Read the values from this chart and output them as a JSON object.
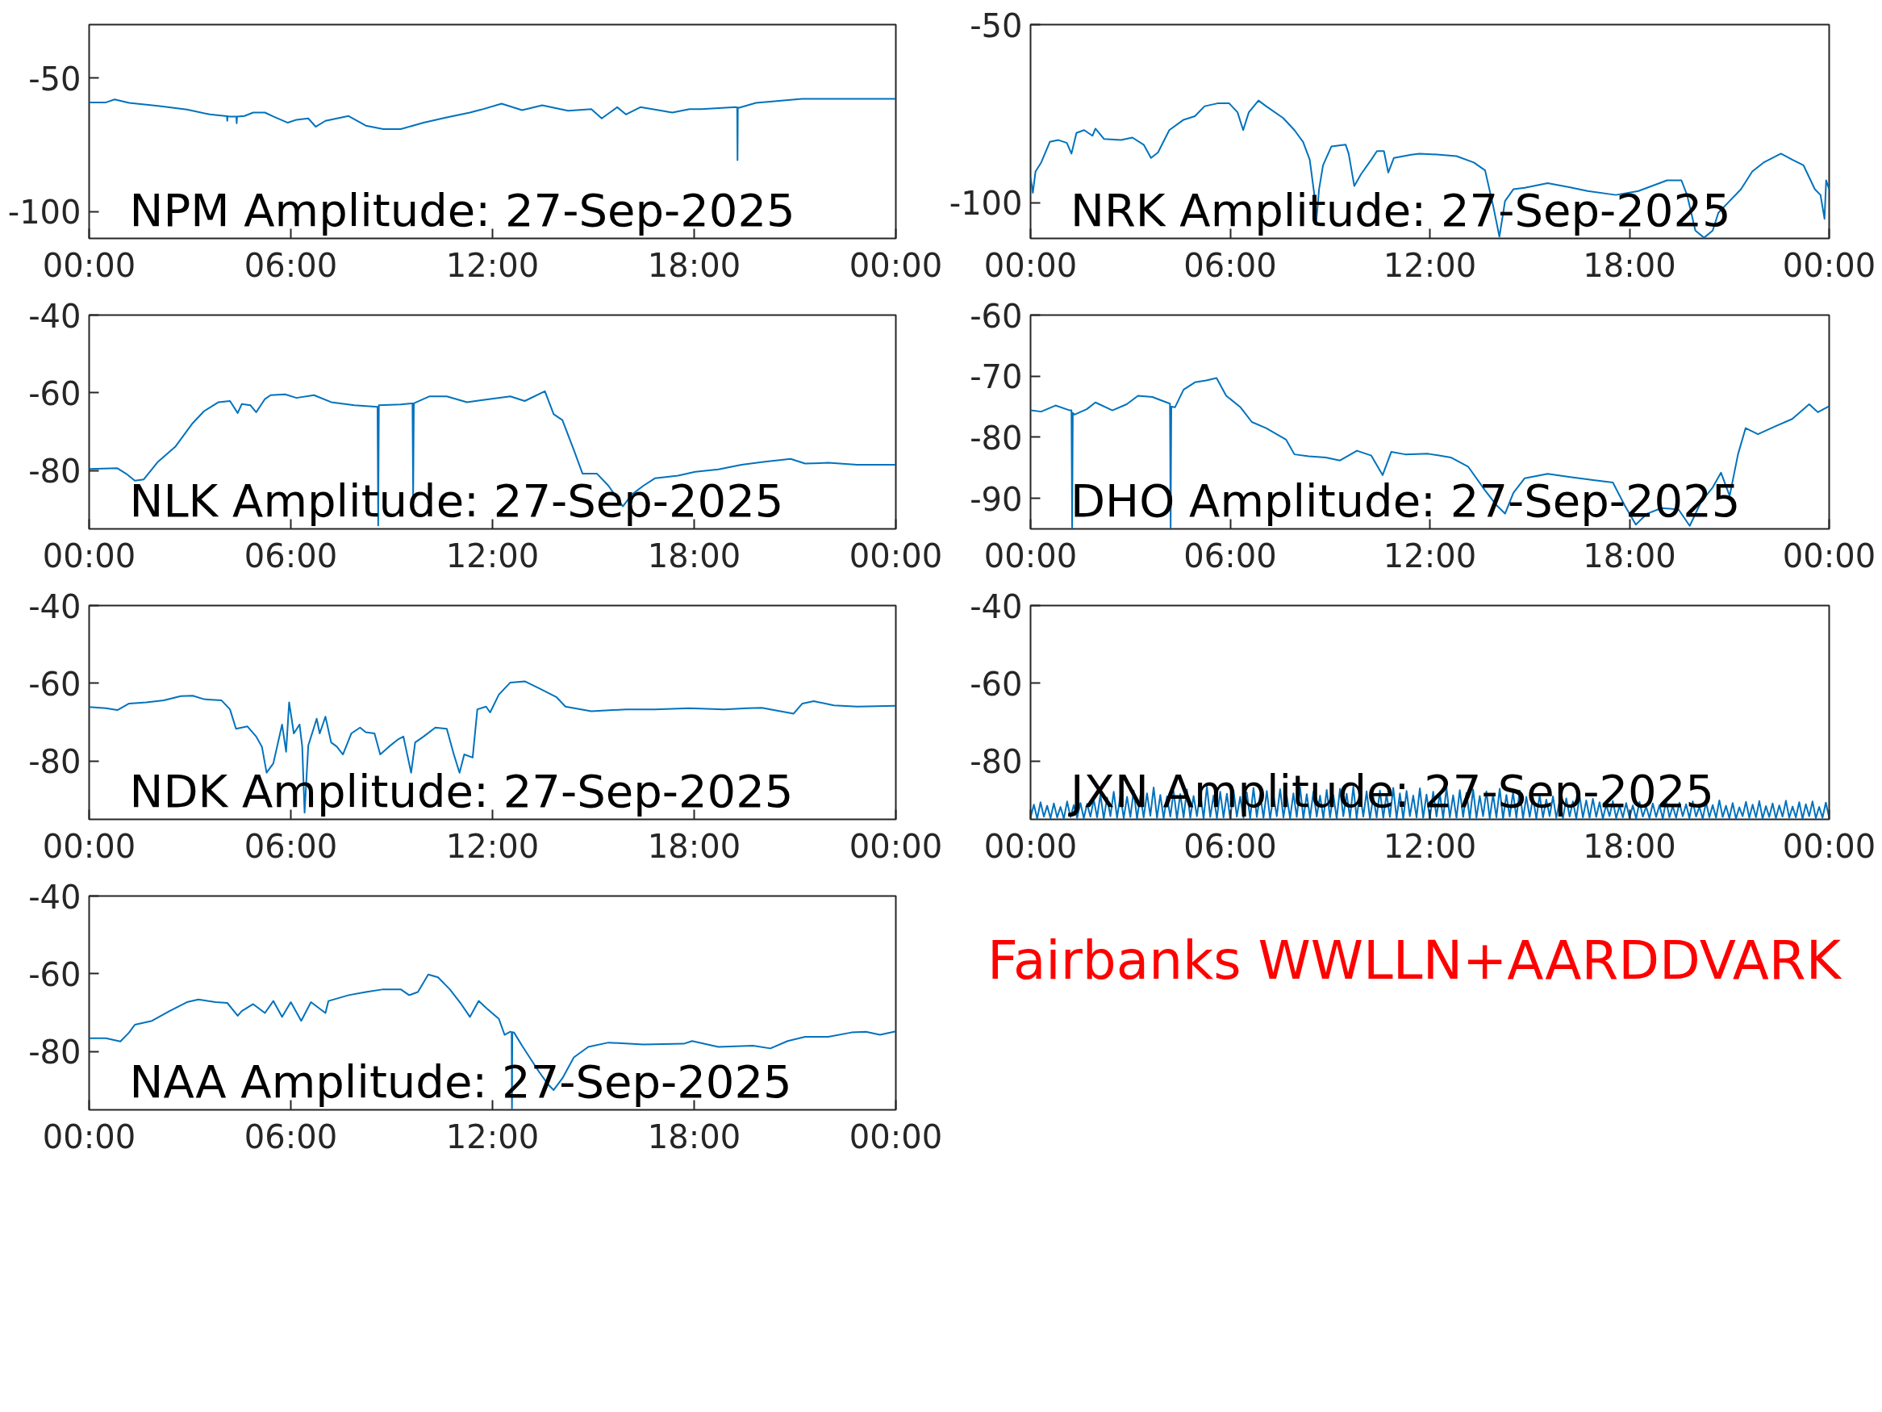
{
  "chart_data": [
    {
      "type": "line",
      "title": "NPM Amplitude: 27-Sep-2025",
      "xlim": [
        0,
        24
      ],
      "xticks": [
        {
          "value": 0,
          "label": "00:00"
        },
        {
          "value": 6,
          "label": "06:00"
        },
        {
          "value": 12,
          "label": "12:00"
        },
        {
          "value": 18,
          "label": "18:00"
        },
        {
          "value": 24,
          "label": "00:00"
        }
      ],
      "ylim": [
        -110,
        -30
      ],
      "yticks": [
        -100,
        -50
      ],
      "x": [
        0,
        0.5,
        0.76,
        1.19,
        2.05,
        2.91,
        3.59,
        4.1,
        4.11,
        4.12,
        4.19,
        4.38,
        4.39,
        4.4,
        4.62,
        4.88,
        5.23,
        5.48,
        5.91,
        6.17,
        6.52,
        6.74,
        7.03,
        7.72,
        8.23,
        8.75,
        9.27,
        9.95,
        10.64,
        11.33,
        11.67,
        12.27,
        12.88,
        13.48,
        14.25,
        14.94,
        15.25,
        15.45,
        15.71,
        15.97,
        16.4,
        16.83,
        17.35,
        17.86,
        18.21,
        19.24,
        19.28,
        19.29,
        19.3,
        19.34,
        19.84,
        21.21,
        21.99,
        24
      ],
      "series": [
        {
          "color": "#0072bd",
          "values": [
            -59.1,
            -59.1,
            -58.0,
            -59.3,
            -60.4,
            -61.8,
            -63.6,
            -64.3,
            -66.0,
            -64.3,
            -64.4,
            -64.4,
            -66.9,
            -64.4,
            -64.2,
            -62.9,
            -62.9,
            -64.4,
            -66.7,
            -65.6,
            -65.1,
            -68.2,
            -66.0,
            -64.2,
            -67.8,
            -69.1,
            -69.1,
            -66.7,
            -64.7,
            -62.9,
            -61.8,
            -59.6,
            -62.0,
            -60.2,
            -62.2,
            -61.6,
            -65.1,
            -63.3,
            -60.9,
            -63.6,
            -60.9,
            -61.8,
            -62.9,
            -61.6,
            -61.6,
            -60.9,
            -61.0,
            -80.7,
            -61.0,
            -61.1,
            -59.3,
            -57.8,
            -57.8,
            -57.8
          ]
        }
      ]
    },
    {
      "type": "line",
      "title": "NRK Amplitude: 27-Sep-2025",
      "xlim": [
        0,
        24
      ],
      "xticks": [
        {
          "value": 0,
          "label": "00:00"
        },
        {
          "value": 6,
          "label": "06:00"
        },
        {
          "value": 12,
          "label": "12:00"
        },
        {
          "value": 18,
          "label": "18:00"
        },
        {
          "value": 24,
          "label": "00:00"
        }
      ],
      "ylim": [
        -110,
        -50
      ],
      "yticks": [
        -100,
        -50
      ],
      "x": [
        0,
        0.07,
        0.15,
        0.32,
        0.58,
        0.84,
        1.09,
        1.23,
        1.38,
        1.61,
        1.86,
        1.95,
        2.21,
        2.72,
        3.06,
        3.4,
        3.62,
        3.83,
        4.17,
        4.6,
        4.94,
        5.23,
        5.62,
        5.97,
        6.22,
        6.39,
        6.56,
        6.85,
        7.08,
        7.59,
        7.93,
        8.19,
        8.39,
        8.53,
        8.58,
        8.67,
        8.79,
        9.04,
        9.47,
        9.56,
        9.73,
        9.93,
        10.24,
        10.41,
        10.62,
        10.75,
        10.92,
        11.44,
        11.69,
        12.29,
        12.8,
        13.32,
        13.66,
        13.91,
        14.09,
        14.26,
        14.51,
        14.85,
        15.54,
        16.22,
        16.74,
        17.59,
        18.27,
        19.13,
        19.56,
        19.73,
        19.98,
        20.24,
        20.5,
        20.67,
        21.01,
        21.35,
        21.69,
        22.03,
        22.55,
        22.89,
        23.23,
        23.57,
        23.74,
        23.86,
        23.91,
        24
      ],
      "series": [
        {
          "color": "#0072bd",
          "values": [
            -92.9,
            -97.2,
            -91.2,
            -88.7,
            -82.9,
            -82.4,
            -83.2,
            -86.2,
            -80.4,
            -79.6,
            -81.2,
            -79.2,
            -82.1,
            -82.4,
            -81.7,
            -83.7,
            -87.4,
            -85.9,
            -79.6,
            -76.7,
            -75.7,
            -72.9,
            -72.1,
            -72.1,
            -74.6,
            -79.6,
            -74.6,
            -71.3,
            -72.9,
            -76.2,
            -79.6,
            -82.9,
            -87.9,
            -97.8,
            -106.1,
            -96.2,
            -89.5,
            -84.2,
            -83.7,
            -86.2,
            -95.3,
            -92.0,
            -87.9,
            -85.5,
            -85.5,
            -91.5,
            -87.4,
            -86.5,
            -86.2,
            -86.5,
            -86.9,
            -88.7,
            -90.9,
            -101.2,
            -109.5,
            -99.5,
            -96.2,
            -95.8,
            -94.5,
            -95.7,
            -96.7,
            -97.8,
            -96.7,
            -93.7,
            -93.7,
            -97.8,
            -107.8,
            -109.8,
            -107.8,
            -102.8,
            -99.5,
            -96.2,
            -91.2,
            -88.7,
            -86.2,
            -87.9,
            -89.5,
            -96.2,
            -97.8,
            -104.5,
            -93.7,
            -96.2
          ]
        }
      ]
    },
    {
      "type": "line",
      "title": "NLK Amplitude: 27-Sep-2025",
      "xlim": [
        0,
        24
      ],
      "xticks": [
        {
          "value": 0,
          "label": "00:00"
        },
        {
          "value": 6,
          "label": "06:00"
        },
        {
          "value": 12,
          "label": "12:00"
        },
        {
          "value": 18,
          "label": "18:00"
        },
        {
          "value": 24,
          "label": "00:00"
        }
      ],
      "ylim": [
        -95,
        -40
      ],
      "yticks": [
        -80,
        -60,
        -40
      ],
      "x": [
        0,
        0.84,
        1.1,
        1.36,
        1.62,
        2.05,
        2.56,
        3.08,
        3.42,
        3.85,
        4.19,
        4.42,
        4.54,
        4.8,
        4.97,
        5.23,
        5.4,
        5.83,
        6.17,
        6.69,
        7.2,
        7.89,
        8.58,
        8.6,
        8.62,
        9.27,
        9.62,
        9.64,
        9.66,
        10.13,
        10.64,
        11.24,
        11.67,
        12.53,
        12.96,
        13.56,
        13.82,
        14.08,
        14.42,
        14.68,
        15.11,
        15.45,
        15.88,
        16.14,
        16.49,
        16.83,
        17.52,
        18.03,
        18.72,
        19.41,
        20.1,
        20.87,
        21.3,
        21.99,
        22.85,
        24
      ],
      "series": [
        {
          "color": "#0072bd",
          "values": [
            -79.6,
            -79.4,
            -80.8,
            -82.6,
            -82.3,
            -77.7,
            -73.9,
            -67.8,
            -64.7,
            -62.4,
            -62.1,
            -65.2,
            -62.9,
            -63.2,
            -65.0,
            -61.6,
            -60.6,
            -60.4,
            -61.3,
            -60.6,
            -62.4,
            -63.2,
            -63.6,
            -94.1,
            -63.2,
            -63.0,
            -62.7,
            -86.9,
            -62.7,
            -60.9,
            -60.9,
            -62.4,
            -61.9,
            -60.9,
            -62.1,
            -59.6,
            -65.5,
            -67.0,
            -74.7,
            -80.8,
            -80.8,
            -83.9,
            -89.2,
            -86.2,
            -83.9,
            -82.0,
            -81.3,
            -80.3,
            -79.7,
            -78.5,
            -77.7,
            -77.0,
            -78.2,
            -78.0,
            -78.5,
            -78.5
          ]
        }
      ]
    },
    {
      "type": "line",
      "title": "DHO Amplitude: 27-Sep-2025",
      "xlim": [
        0,
        24
      ],
      "xticks": [
        {
          "value": 0,
          "label": "00:00"
        },
        {
          "value": 6,
          "label": "06:00"
        },
        {
          "value": 12,
          "label": "12:00"
        },
        {
          "value": 18,
          "label": "18:00"
        },
        {
          "value": 24,
          "label": "00:00"
        }
      ],
      "ylim": [
        -95,
        -60
      ],
      "yticks": [
        -90,
        -80,
        -70,
        -60
      ],
      "x": [
        0,
        0.32,
        0.75,
        1.18,
        1.23,
        1.25,
        1.27,
        1.32,
        1.69,
        1.95,
        2.46,
        2.89,
        3.23,
        3.66,
        4.09,
        4.19,
        4.21,
        4.23,
        4.34,
        4.6,
        4.94,
        5.28,
        5.59,
        5.88,
        6.31,
        6.65,
        7.08,
        7.68,
        7.93,
        8.36,
        8.87,
        9.3,
        9.81,
        10.24,
        10.58,
        10.84,
        11.26,
        11.95,
        12.63,
        13.15,
        13.66,
        14.0,
        14.26,
        14.51,
        14.85,
        15.54,
        16.22,
        16.91,
        17.5,
        17.85,
        18.19,
        18.53,
        18.96,
        19.47,
        19.81,
        20.15,
        20.5,
        20.75,
        21.01,
        21.26,
        21.49,
        21.86,
        22.38,
        22.89,
        23.4,
        23.66,
        24
      ],
      "series": [
        {
          "color": "#0072bd",
          "values": [
            -75.6,
            -75.8,
            -74.8,
            -75.6,
            -75.6,
            -94.8,
            -76.0,
            -76.3,
            -75.4,
            -74.3,
            -75.6,
            -74.6,
            -73.2,
            -73.4,
            -74.3,
            -74.5,
            -94.8,
            -75.0,
            -75.1,
            -72.2,
            -71.0,
            -70.7,
            -70.3,
            -73.2,
            -75.1,
            -77.5,
            -78.5,
            -80.4,
            -82.8,
            -83.1,
            -83.3,
            -83.8,
            -82.2,
            -83.0,
            -86.2,
            -82.4,
            -82.8,
            -82.7,
            -83.3,
            -84.8,
            -88.7,
            -91.1,
            -92.5,
            -89.1,
            -86.7,
            -86.0,
            -86.5,
            -87.0,
            -87.4,
            -91.1,
            -94.3,
            -92.5,
            -91.6,
            -91.8,
            -94.5,
            -90.6,
            -88.2,
            -85.8,
            -89.6,
            -82.8,
            -78.5,
            -79.5,
            -78.2,
            -77.0,
            -74.6,
            -75.9,
            -74.9
          ]
        }
      ]
    },
    {
      "type": "line",
      "title": "NDK Amplitude: 27-Sep-2025",
      "xlim": [
        0,
        24
      ],
      "xticks": [
        {
          "value": 0,
          "label": "00:00"
        },
        {
          "value": 6,
          "label": "06:00"
        },
        {
          "value": 12,
          "label": "12:00"
        },
        {
          "value": 18,
          "label": "18:00"
        },
        {
          "value": 24,
          "label": "00:00"
        }
      ],
      "ylim": [
        -95,
        -40
      ],
      "yticks": [
        -80,
        -60,
        -40
      ],
      "x": [
        0,
        0.5,
        0.84,
        1.19,
        1.7,
        2.22,
        2.73,
        3.08,
        3.42,
        3.94,
        4.19,
        4.37,
        4.71,
        4.97,
        5.14,
        5.28,
        5.48,
        5.74,
        5.86,
        5.95,
        6.09,
        6.26,
        6.34,
        6.41,
        6.52,
        6.77,
        6.86,
        7.03,
        7.2,
        7.37,
        7.55,
        7.8,
        8.06,
        8.23,
        8.49,
        8.66,
        8.92,
        9.18,
        9.35,
        9.58,
        9.7,
        9.95,
        10.3,
        10.64,
        10.85,
        11.02,
        11.16,
        11.41,
        11.55,
        11.81,
        11.93,
        12.19,
        12.53,
        12.96,
        13.39,
        13.91,
        14.17,
        14.94,
        15.97,
        16.83,
        17.86,
        18.89,
        19.58,
        20.01,
        20.96,
        21.22,
        21.56,
        22.16,
        22.85,
        24
      ],
      "series": [
        {
          "color": "#0072bd",
          "values": [
            -66.1,
            -66.4,
            -66.9,
            -65.2,
            -64.9,
            -64.4,
            -63.3,
            -63.2,
            -64.1,
            -64.4,
            -66.7,
            -71.7,
            -71.1,
            -73.7,
            -76.3,
            -83.0,
            -80.6,
            -70.6,
            -77.6,
            -64.9,
            -72.9,
            -70.6,
            -76.3,
            -93.3,
            -76.0,
            -69.1,
            -72.9,
            -68.6,
            -75.2,
            -76.3,
            -78.3,
            -72.9,
            -71.4,
            -72.6,
            -72.9,
            -78.3,
            -76.3,
            -74.5,
            -73.7,
            -83.0,
            -75.2,
            -73.7,
            -71.4,
            -71.7,
            -78.3,
            -83.0,
            -78.3,
            -79.1,
            -66.7,
            -66.0,
            -67.5,
            -62.9,
            -59.8,
            -59.5,
            -61.3,
            -63.6,
            -66.0,
            -67.2,
            -66.7,
            -66.7,
            -66.4,
            -66.7,
            -66.4,
            -66.3,
            -67.8,
            -65.2,
            -64.6,
            -65.7,
            -66.0,
            -65.8
          ]
        }
      ]
    },
    {
      "type": "line",
      "title": "JXN Amplitude: 27-Sep-2025",
      "xlim": [
        0,
        24
      ],
      "xticks": [
        {
          "value": 0,
          "label": "00:00"
        },
        {
          "value": 6,
          "label": "06:00"
        },
        {
          "value": 12,
          "label": "12:00"
        },
        {
          "value": 18,
          "label": "18:00"
        },
        {
          "value": 24,
          "label": "00:00"
        }
      ],
      "ylim": [
        -95,
        -40
      ],
      "yticks": [
        -80,
        -60,
        -40
      ],
      "x": [
        0,
        0.1,
        0.2,
        0.3,
        0.4,
        0.5,
        0.6,
        0.7,
        0.8,
        0.9,
        1,
        1.1,
        1.2,
        1.3,
        1.4,
        1.5,
        1.6,
        1.7,
        1.8,
        1.9,
        2,
        2.1,
        2.2,
        2.3,
        2.4,
        2.5,
        2.6,
        2.7,
        2.8,
        2.9,
        3,
        3.1,
        3.2,
        3.3,
        3.4,
        3.5,
        3.6,
        3.7,
        3.8,
        3.9,
        4,
        4.1,
        4.2,
        4.3,
        4.4,
        4.5,
        4.6,
        4.7,
        4.8,
        4.9,
        5,
        5.1,
        5.2,
        5.3,
        5.4,
        5.5,
        5.6,
        5.7,
        5.8,
        5.9,
        6,
        6.1,
        6.2,
        6.3,
        6.4,
        6.5,
        6.6,
        6.7,
        6.8,
        6.9,
        7,
        7.1,
        7.2,
        7.3,
        7.4,
        7.5,
        7.6,
        7.7,
        7.8,
        7.9,
        8,
        8.1,
        8.2,
        8.3,
        8.4,
        8.5,
        8.6,
        8.7,
        8.8,
        8.9,
        9,
        9.1,
        9.2,
        9.3,
        9.4,
        9.5,
        9.6,
        9.7,
        9.8,
        9.9,
        10,
        10.1,
        10.2,
        10.3,
        10.4,
        10.5,
        10.6,
        10.7,
        10.8,
        10.9,
        11,
        11.1,
        11.2,
        11.3,
        11.4,
        11.5,
        11.6,
        11.7,
        11.8,
        11.9,
        12,
        12.1,
        12.2,
        12.3,
        12.4,
        12.5,
        12.6,
        12.7,
        12.8,
        12.9,
        13,
        13.1,
        13.2,
        13.3,
        13.4,
        13.5,
        13.6,
        13.7,
        13.8,
        13.9,
        14,
        14.1,
        14.2,
        14.3,
        14.4,
        14.5,
        14.6,
        14.7,
        14.8,
        14.9,
        15,
        15.1,
        15.2,
        15.3,
        15.4,
        15.5,
        15.6,
        15.7,
        15.8,
        15.9,
        16,
        16.1,
        16.2,
        16.3,
        16.4,
        16.5,
        16.6,
        16.7,
        16.8,
        16.9,
        17,
        17.1,
        17.2,
        17.3,
        17.4,
        17.5,
        17.6,
        17.7,
        17.8,
        17.9,
        18,
        18.1,
        18.2,
        18.3,
        18.4,
        18.5,
        18.6,
        18.7,
        18.8,
        18.9,
        19,
        19.1,
        19.2,
        19.3,
        19.4,
        19.5,
        19.6,
        19.7,
        19.8,
        19.9,
        20,
        20.1,
        20.2,
        20.3,
        20.4,
        20.5,
        20.6,
        20.7,
        20.8,
        20.9,
        21,
        21.1,
        21.2,
        21.3,
        21.4,
        21.5,
        21.6,
        21.7,
        21.8,
        21.9,
        22,
        22.1,
        22.2,
        22.3,
        22.4,
        22.5,
        22.6,
        22.7,
        22.8,
        22.9,
        23,
        23.1,
        23.2,
        23.3,
        23.4,
        23.5,
        23.6,
        23.7,
        23.8,
        23.9,
        24
      ],
      "series": [
        {
          "color": "#0072bd",
          "values": [
            -94.6,
            -91.2,
            -94.8,
            -90.6,
            -94.3,
            -91.5,
            -94.7,
            -90.9,
            -94.5,
            -91.8,
            -94.8,
            -90.4,
            -94.4,
            -91.3,
            -94.6,
            -90.8,
            -94.7,
            -91.0,
            -94.3,
            -89.9,
            -94.5,
            -88.6,
            -94.8,
            -89.4,
            -94.2,
            -87.9,
            -94.6,
            -88.8,
            -94.7,
            -89.2,
            -94.4,
            -87.6,
            -94.8,
            -88.9,
            -94.5,
            -88.3,
            -94.1,
            -86.8,
            -94.6,
            -88.7,
            -94.7,
            -89.1,
            -94.3,
            -87.8,
            -94.8,
            -88.5,
            -94.5,
            -87.3,
            -94.6,
            -89.0,
            -94.2,
            -88.2,
            -94.8,
            -86.5,
            -94.4,
            -88.9,
            -94.7,
            -87.9,
            -94.5,
            -88.4,
            -94.8,
            -87.5,
            -94.3,
            -89.2,
            -94.6,
            -88.1,
            -94.7,
            -86.9,
            -94.4,
            -88.6,
            -94.6,
            -87.7,
            -94.8,
            -88.8,
            -94.2,
            -87.2,
            -94.5,
            -89.0,
            -94.7,
            -88.3,
            -94.4,
            -86.7,
            -94.8,
            -88.5,
            -94.6,
            -87.9,
            -94.3,
            -88.9,
            -94.7,
            -87.4,
            -94.5,
            -88.7,
            -94.8,
            -87.1,
            -94.2,
            -88.4,
            -94.6,
            -86.6,
            -94.7,
            -88.2,
            -94.3,
            -87.8,
            -94.8,
            -89.1,
            -94.5,
            -87.6,
            -94.6,
            -88.5,
            -94.4,
            -86.9,
            -94.7,
            -88.3,
            -94.8,
            -87.7,
            -94.2,
            -88.9,
            -94.5,
            -87.0,
            -94.6,
            -88.6,
            -94.8,
            -87.9,
            -94.3,
            -88.4,
            -94.7,
            -86.8,
            -94.5,
            -88.8,
            -94.6,
            -87.5,
            -94.4,
            -88.2,
            -94.8,
            -87.3,
            -94.6,
            -89.0,
            -94.2,
            -87.8,
            -94.7,
            -88.6,
            -94.5,
            -87.1,
            -94.8,
            -88.7,
            -94.3,
            -88.0,
            -94.6,
            -87.6,
            -94.7,
            -89.2,
            -94.4,
            -89.3,
            -94.8,
            -88.8,
            -94.5,
            -89.9,
            -94.2,
            -89.1,
            -94.6,
            -90.2,
            -94.7,
            -89.6,
            -94.3,
            -90.4,
            -94.8,
            -89.0,
            -94.5,
            -90.1,
            -94.6,
            -89.7,
            -94.4,
            -90.6,
            -94.8,
            -91.2,
            -94.2,
            -90.3,
            -94.7,
            -91.5,
            -94.5,
            -90.8,
            -94.6,
            -91.4,
            -94.8,
            -90.5,
            -94.3,
            -91.7,
            -94.7,
            -90.9,
            -94.4,
            -91.3,
            -94.8,
            -90.2,
            -94.5,
            -91.6,
            -94.6,
            -90.7,
            -94.2,
            -91.1,
            -94.7,
            -90.4,
            -94.3,
            -91.8,
            -94.8,
            -90.6,
            -94.5,
            -91.3,
            -94.6,
            -90.1,
            -94.4,
            -91.5,
            -94.7,
            -90.8,
            -94.8,
            -91.9,
            -94.2,
            -90.5,
            -94.6,
            -91.2,
            -94.5,
            -90.3,
            -94.8,
            -91.6,
            -94.4,
            -90.9,
            -94.7,
            -91.4,
            -94.3,
            -90.2,
            -94.6,
            -91.7,
            -94.5,
            -90.6,
            -94.8,
            -91.1,
            -94.2,
            -90.4,
            -94.7,
            -91.8,
            -94.6,
            -90.7,
            -94.6
          ]
        }
      ]
    },
    {
      "type": "line",
      "title": "NAA Amplitude: 27-Sep-2025",
      "xlim": [
        0,
        24
      ],
      "xticks": [
        {
          "value": 0,
          "label": "00:00"
        },
        {
          "value": 6,
          "label": "06:00"
        },
        {
          "value": 12,
          "label": "12:00"
        },
        {
          "value": 18,
          "label": "18:00"
        },
        {
          "value": 24,
          "label": "00:00"
        }
      ],
      "ylim": [
        -95,
        -40
      ],
      "yticks": [
        -80,
        -60,
        -40
      ],
      "x": [
        0,
        0.5,
        0.93,
        1.19,
        1.36,
        1.87,
        2.39,
        2.91,
        3.25,
        3.76,
        4.11,
        4.42,
        4.54,
        4.88,
        5.23,
        5.48,
        5.74,
        6.0,
        6.31,
        6.6,
        7.03,
        7.12,
        7.72,
        8.23,
        8.75,
        9.27,
        9.52,
        9.78,
        10.09,
        10.38,
        10.73,
        11.07,
        11.33,
        11.59,
        11.84,
        12.19,
        12.36,
        12.53,
        12.57,
        12.58,
        12.59,
        12.64,
        12.88,
        13.39,
        13.65,
        13.82,
        14.08,
        14.42,
        14.85,
        15.45,
        16.49,
        17.69,
        17.94,
        18.72,
        19.75,
        20.27,
        20.78,
        21.3,
        21.99,
        22.68,
        23.11,
        23.53,
        24
      ],
      "series": [
        {
          "color": "#0072bd",
          "values": [
            -76.6,
            -76.6,
            -77.4,
            -75.1,
            -73.1,
            -72.1,
            -69.6,
            -67.3,
            -66.6,
            -67.3,
            -67.5,
            -70.8,
            -69.6,
            -67.8,
            -70.1,
            -67.0,
            -71.1,
            -67.3,
            -72.1,
            -67.3,
            -70.1,
            -67.0,
            -65.5,
            -64.7,
            -64.0,
            -64.0,
            -65.5,
            -64.7,
            -60.2,
            -60.9,
            -64.0,
            -67.8,
            -71.1,
            -67.0,
            -69.0,
            -71.6,
            -75.7,
            -74.9,
            -75.0,
            -94.8,
            -75.0,
            -75.1,
            -78.5,
            -85.3,
            -88.4,
            -89.9,
            -86.9,
            -81.5,
            -78.8,
            -77.7,
            -78.2,
            -78.0,
            -77.3,
            -78.8,
            -78.5,
            -79.2,
            -77.3,
            -76.2,
            -76.2,
            -75.1,
            -74.9,
            -75.7,
            -74.8
          ]
        }
      ]
    },
    {
      "type": "other",
      "title": "Fairbanks WWLLN+AARDDVARK",
      "color": "#ff0000"
    }
  ]
}
